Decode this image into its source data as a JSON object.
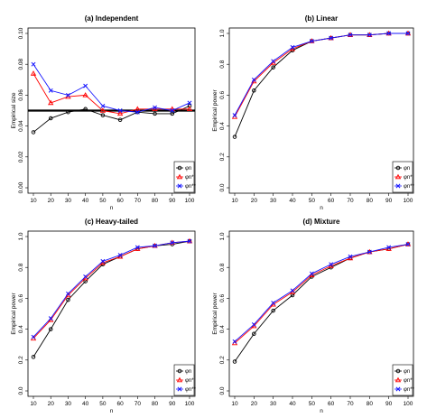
{
  "chart_data": [
    {
      "type": "line",
      "title": "(a) Independent",
      "xlabel": "n",
      "ylabel": "Empirical size",
      "x": [
        10,
        20,
        30,
        40,
        50,
        60,
        70,
        80,
        90,
        100
      ],
      "xticks": [
        "10",
        "20",
        "30",
        "40",
        "50",
        "60",
        "70",
        "80",
        "90",
        "100"
      ],
      "ylim": [
        0,
        0.1
      ],
      "yticks": [
        "0.00",
        "0.02",
        "0.04",
        "0.06",
        "0.08",
        "0.10"
      ],
      "reference_line": 0.05,
      "series": [
        {
          "name": "φn",
          "marker": "circle",
          "color": "#000000",
          "values": [
            0.036,
            0.045,
            0.049,
            0.051,
            0.047,
            0.044,
            0.049,
            0.048,
            0.048,
            0.053
          ]
        },
        {
          "name": "φn*",
          "marker": "triangle",
          "color": "#ff0000",
          "values": [
            0.074,
            0.055,
            0.059,
            0.06,
            0.05,
            0.048,
            0.051,
            0.051,
            0.051,
            0.051
          ]
        },
        {
          "name": "φn**",
          "marker": "x",
          "color": "#1515ff",
          "values": [
            0.08,
            0.063,
            0.06,
            0.066,
            0.053,
            0.05,
            0.049,
            0.052,
            0.05,
            0.055
          ]
        }
      ],
      "legend": "bottom-right"
    },
    {
      "type": "line",
      "title": "(b) Linear",
      "xlabel": "n",
      "ylabel": "Empirical power",
      "x": [
        10,
        20,
        30,
        40,
        50,
        60,
        70,
        80,
        90,
        100
      ],
      "xticks": [
        "10",
        "20",
        "30",
        "40",
        "50",
        "60",
        "70",
        "80",
        "90",
        "100"
      ],
      "ylim": [
        0,
        1
      ],
      "yticks": [
        "0.0",
        "0.2",
        "0.4",
        "0.6",
        "0.8",
        "1.0"
      ],
      "series": [
        {
          "name": "φn",
          "marker": "circle",
          "color": "#000000",
          "values": [
            0.33,
            0.63,
            0.78,
            0.89,
            0.95,
            0.97,
            0.99,
            0.99,
            1.0,
            1.0
          ]
        },
        {
          "name": "φn*",
          "marker": "triangle",
          "color": "#ff0000",
          "values": [
            0.46,
            0.69,
            0.81,
            0.9,
            0.95,
            0.97,
            0.99,
            0.99,
            1.0,
            1.0
          ]
        },
        {
          "name": "φn**",
          "marker": "x",
          "color": "#1515ff",
          "values": [
            0.47,
            0.7,
            0.82,
            0.91,
            0.95,
            0.97,
            0.99,
            0.99,
            1.0,
            1.0
          ]
        }
      ],
      "legend": "bottom-right"
    },
    {
      "type": "line",
      "title": "(c) Heavy-tailed",
      "xlabel": "n",
      "ylabel": "Empirical power",
      "x": [
        10,
        20,
        30,
        40,
        50,
        60,
        70,
        80,
        90,
        100
      ],
      "xticks": [
        "10",
        "20",
        "30",
        "40",
        "50",
        "60",
        "70",
        "80",
        "90",
        "100"
      ],
      "ylim": [
        0,
        1
      ],
      "yticks": [
        "0.0",
        "0.2",
        "0.4",
        "0.6",
        "0.8",
        "1.0"
      ],
      "series": [
        {
          "name": "φn",
          "marker": "circle",
          "color": "#000000",
          "values": [
            0.22,
            0.4,
            0.59,
            0.71,
            0.82,
            0.87,
            0.92,
            0.94,
            0.95,
            0.97
          ]
        },
        {
          "name": "φn*",
          "marker": "triangle",
          "color": "#ff0000",
          "values": [
            0.34,
            0.46,
            0.62,
            0.73,
            0.83,
            0.87,
            0.92,
            0.94,
            0.96,
            0.97
          ]
        },
        {
          "name": "φn**",
          "marker": "x",
          "color": "#1515ff",
          "values": [
            0.35,
            0.47,
            0.63,
            0.74,
            0.84,
            0.88,
            0.93,
            0.94,
            0.96,
            0.97
          ]
        }
      ],
      "legend": "bottom-right"
    },
    {
      "type": "line",
      "title": "(d) Mixture",
      "xlabel": "n",
      "ylabel": "Empirical power",
      "x": [
        10,
        20,
        30,
        40,
        50,
        60,
        70,
        80,
        90,
        100
      ],
      "xticks": [
        "10",
        "20",
        "30",
        "40",
        "50",
        "60",
        "70",
        "80",
        "90",
        "100"
      ],
      "ylim": [
        0,
        1
      ],
      "yticks": [
        "0.0",
        "0.2",
        "0.4",
        "0.6",
        "0.8",
        "1.0"
      ],
      "series": [
        {
          "name": "φn",
          "marker": "circle",
          "color": "#000000",
          "values": [
            0.19,
            0.37,
            0.52,
            0.62,
            0.74,
            0.8,
            0.86,
            0.9,
            0.92,
            0.95
          ]
        },
        {
          "name": "φn*",
          "marker": "triangle",
          "color": "#ff0000",
          "values": [
            0.31,
            0.42,
            0.56,
            0.64,
            0.75,
            0.81,
            0.86,
            0.9,
            0.92,
            0.95
          ]
        },
        {
          "name": "φn**",
          "marker": "x",
          "color": "#1515ff",
          "values": [
            0.32,
            0.43,
            0.57,
            0.65,
            0.76,
            0.82,
            0.87,
            0.9,
            0.93,
            0.95
          ]
        }
      ],
      "legend": "bottom-right"
    }
  ]
}
